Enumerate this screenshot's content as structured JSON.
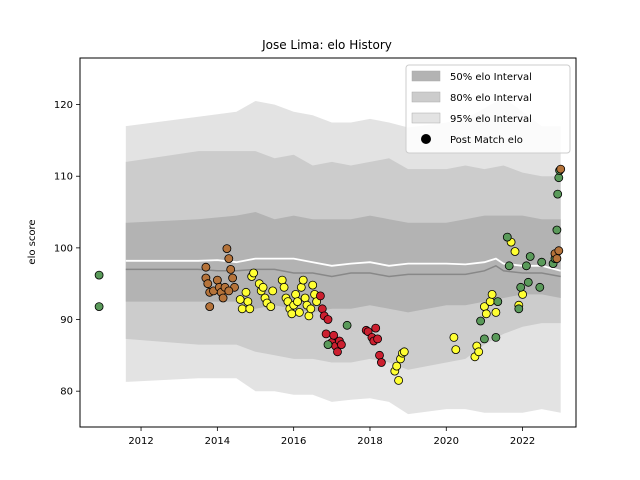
{
  "chart_data": {
    "type": "scatter",
    "title": "Jose Lima: elo History",
    "xlabel": "",
    "ylabel": "elo score",
    "xlim": [
      2010.4,
      2023.4
    ],
    "ylim": [
      75,
      126.5
    ],
    "xticks": [
      2012,
      2014,
      2016,
      2018,
      2020,
      2022
    ],
    "yticks": [
      80,
      90,
      100,
      110,
      120
    ],
    "grid": false,
    "legend_placement": "top-right",
    "colors": {
      "band50": "#b3b3b3",
      "band80": "#cccccc",
      "band95": "#e3e3e3",
      "median_line": "#ffffff",
      "mean_line": "#888888",
      "marker_edge": "#000000",
      "brown": "#b5733a",
      "yellow": "#ffff33",
      "red": "#cc1f2f",
      "green": "#5a9a5a"
    },
    "legend": [
      {
        "label": "50% elo Interval",
        "kind": "band",
        "color_key": "band50"
      },
      {
        "label": "80% elo Interval",
        "kind": "band",
        "color_key": "band80"
      },
      {
        "label": "95% elo Interval",
        "kind": "band",
        "color_key": "band95"
      },
      {
        "label": "Post Match elo",
        "kind": "marker",
        "color": "#000000"
      }
    ],
    "bands": {
      "x": [
        2011.6,
        2013.5,
        2014.5,
        2015.0,
        2015.5,
        2016.0,
        2016.5,
        2017.0,
        2017.5,
        2018.0,
        2018.5,
        2019.0,
        2020.0,
        2020.5,
        2021.0,
        2021.5,
        2022.0,
        2022.5,
        2023.0
      ],
      "p95_low": [
        81.3,
        81.8,
        81.8,
        80.0,
        80.0,
        79.5,
        79.5,
        78.5,
        78.8,
        79.0,
        78.5,
        76.8,
        77.5,
        77.5,
        77.0,
        77.0,
        77.0,
        77.5,
        77.0
      ],
      "p95_high": [
        117.0,
        118.3,
        119.0,
        120.5,
        120.0,
        119.0,
        118.5,
        117.5,
        117.5,
        118.0,
        117.5,
        116.8,
        117.5,
        118.0,
        119.5,
        121.0,
        119.0,
        117.0,
        117.0
      ],
      "p80_low": [
        87.3,
        86.5,
        86.5,
        85.5,
        85.0,
        84.5,
        84.5,
        84.0,
        84.0,
        84.5,
        84.0,
        83.0,
        84.0,
        84.5,
        86.5,
        88.0,
        89.0,
        89.5,
        89.5
      ],
      "p80_high": [
        112.0,
        113.5,
        113.5,
        113.5,
        112.5,
        113.0,
        111.5,
        112.0,
        111.5,
        112.0,
        112.5,
        111.0,
        111.0,
        111.5,
        111.0,
        111.5,
        110.5,
        110.0,
        110.0
      ],
      "p50_low": [
        92.5,
        92.5,
        92.5,
        91.5,
        92.0,
        91.5,
        91.0,
        91.5,
        91.5,
        92.0,
        91.5,
        91.0,
        92.0,
        92.0,
        92.5,
        93.0,
        93.5,
        93.5,
        93.0
      ],
      "p50_high": [
        103.5,
        104.0,
        104.5,
        105.0,
        104.0,
        104.5,
        104.0,
        104.0,
        104.0,
        104.5,
        104.0,
        103.5,
        103.5,
        104.0,
        104.5,
        104.5,
        104.5,
        104.0,
        104.0
      ]
    },
    "median_line": {
      "x": [
        2011.6,
        2013.5,
        2014.0,
        2014.5,
        2015.0,
        2015.5,
        2016.0,
        2016.5,
        2017.0,
        2017.5,
        2018.0,
        2018.5,
        2019.0,
        2020.0,
        2020.5,
        2021.0,
        2021.3,
        2021.5,
        2022.0,
        2022.5,
        2023.0
      ],
      "y": [
        98.2,
        98.2,
        98.3,
        98.0,
        98.5,
        98.5,
        98.5,
        98.0,
        97.5,
        97.8,
        98.0,
        97.5,
        97.8,
        97.8,
        97.7,
        98.0,
        98.5,
        97.8,
        97.5,
        97.5,
        96.8
      ]
    },
    "mean_line": {
      "x": [
        2011.6,
        2013.5,
        2014.0,
        2014.5,
        2015.0,
        2015.5,
        2016.0,
        2016.5,
        2017.0,
        2017.5,
        2018.0,
        2018.5,
        2019.0,
        2020.0,
        2020.5,
        2021.0,
        2021.3,
        2021.5,
        2022.0,
        2022.5,
        2023.0
      ],
      "y": [
        97.0,
        97.0,
        96.8,
        96.8,
        97.0,
        97.0,
        96.5,
        96.5,
        96.0,
        96.5,
        96.5,
        96.0,
        96.3,
        96.3,
        96.3,
        96.8,
        97.5,
        96.8,
        96.5,
        96.5,
        96.0
      ]
    },
    "series": [
      {
        "color_key": "green",
        "points": [
          [
            2010.9,
            96.2
          ],
          [
            2010.9,
            91.8
          ]
        ]
      },
      {
        "color_key": "brown",
        "points": [
          [
            2013.7,
            97.3
          ],
          [
            2013.7,
            95.8
          ],
          [
            2013.75,
            95.0
          ],
          [
            2013.8,
            93.8
          ],
          [
            2013.8,
            91.8
          ],
          [
            2013.9,
            94.0
          ],
          [
            2014.0,
            95.5
          ],
          [
            2014.05,
            94.5
          ],
          [
            2014.1,
            93.8
          ],
          [
            2014.15,
            93.0
          ],
          [
            2014.2,
            94.5
          ],
          [
            2014.25,
            99.9
          ],
          [
            2014.3,
            98.5
          ],
          [
            2014.35,
            97.0
          ],
          [
            2014.4,
            95.8
          ],
          [
            2014.45,
            94.5
          ],
          [
            2014.3,
            94.0
          ]
        ]
      },
      {
        "color_key": "yellow",
        "points": [
          [
            2014.6,
            92.8
          ],
          [
            2014.65,
            91.5
          ],
          [
            2014.75,
            93.8
          ],
          [
            2014.8,
            92.5
          ],
          [
            2014.85,
            91.5
          ],
          [
            2014.9,
            96.0
          ],
          [
            2014.95,
            96.5
          ],
          [
            2015.1,
            95.0
          ],
          [
            2015.15,
            94.0
          ],
          [
            2015.2,
            94.5
          ],
          [
            2015.25,
            93.0
          ],
          [
            2015.3,
            92.3
          ],
          [
            2015.4,
            91.8
          ],
          [
            2015.45,
            94.0
          ],
          [
            2015.7,
            95.5
          ],
          [
            2015.75,
            94.5
          ],
          [
            2015.8,
            93.0
          ],
          [
            2015.85,
            92.5
          ],
          [
            2015.9,
            91.5
          ],
          [
            2015.95,
            90.8
          ],
          [
            2016.0,
            92.0
          ],
          [
            2016.05,
            93.5
          ],
          [
            2016.1,
            92.5
          ],
          [
            2016.15,
            91.0
          ],
          [
            2016.2,
            94.5
          ],
          [
            2016.25,
            95.5
          ],
          [
            2016.3,
            93.0
          ],
          [
            2016.35,
            92.0
          ],
          [
            2016.4,
            90.5
          ],
          [
            2016.45,
            91.5
          ],
          [
            2016.5,
            94.8
          ],
          [
            2016.55,
            93.5
          ],
          [
            2016.6,
            92.5
          ],
          [
            2018.65,
            82.8
          ],
          [
            2018.7,
            83.5
          ],
          [
            2018.75,
            81.5
          ],
          [
            2018.8,
            84.5
          ],
          [
            2018.85,
            85.3
          ],
          [
            2018.9,
            85.5
          ],
          [
            2020.2,
            87.5
          ],
          [
            2020.25,
            85.8
          ],
          [
            2020.75,
            84.8
          ],
          [
            2020.8,
            86.3
          ],
          [
            2020.85,
            85.5
          ],
          [
            2021.0,
            91.8
          ],
          [
            2021.05,
            90.8
          ],
          [
            2021.15,
            92.5
          ],
          [
            2021.2,
            93.5
          ],
          [
            2021.3,
            91.0
          ],
          [
            2021.7,
            100.8
          ],
          [
            2021.8,
            99.5
          ],
          [
            2021.9,
            92.0
          ],
          [
            2022.0,
            93.5
          ]
        ]
      },
      {
        "color_key": "red",
        "points": [
          [
            2016.7,
            93.3
          ],
          [
            2016.75,
            91.5
          ],
          [
            2016.8,
            90.5
          ],
          [
            2016.85,
            88.0
          ],
          [
            2016.9,
            90.0
          ],
          [
            2017.0,
            86.8
          ],
          [
            2017.05,
            87.8
          ],
          [
            2017.1,
            86.3
          ],
          [
            2017.15,
            85.5
          ],
          [
            2017.2,
            87.0
          ],
          [
            2017.25,
            86.5
          ],
          [
            2017.9,
            88.5
          ],
          [
            2017.95,
            88.3
          ],
          [
            2018.05,
            87.5
          ],
          [
            2018.1,
            87.0
          ],
          [
            2018.15,
            88.8
          ],
          [
            2018.2,
            87.3
          ],
          [
            2018.25,
            85.0
          ],
          [
            2018.3,
            84.0
          ]
        ]
      },
      {
        "color_key": "green",
        "points": [
          [
            2016.9,
            86.5
          ],
          [
            2017.4,
            89.2
          ],
          [
            2020.9,
            89.8
          ],
          [
            2021.0,
            87.3
          ],
          [
            2021.3,
            87.5
          ],
          [
            2021.35,
            92.5
          ],
          [
            2021.6,
            101.5
          ],
          [
            2021.65,
            97.5
          ],
          [
            2021.9,
            91.5
          ],
          [
            2021.95,
            94.5
          ],
          [
            2022.1,
            97.5
          ],
          [
            2022.15,
            95.2
          ],
          [
            2022.2,
            98.8
          ],
          [
            2022.45,
            94.5
          ],
          [
            2022.5,
            98.0
          ],
          [
            2022.8,
            97.8
          ],
          [
            2022.85,
            98.5
          ],
          [
            2022.9,
            102.5
          ],
          [
            2022.92,
            107.5
          ],
          [
            2022.95,
            109.8
          ],
          [
            2022.97,
            110.8
          ]
        ]
      },
      {
        "color_key": "brown",
        "points": [
          [
            2022.85,
            99.2
          ],
          [
            2022.9,
            98.5
          ],
          [
            2022.95,
            99.6
          ],
          [
            2023.0,
            111.0
          ]
        ]
      }
    ]
  }
}
